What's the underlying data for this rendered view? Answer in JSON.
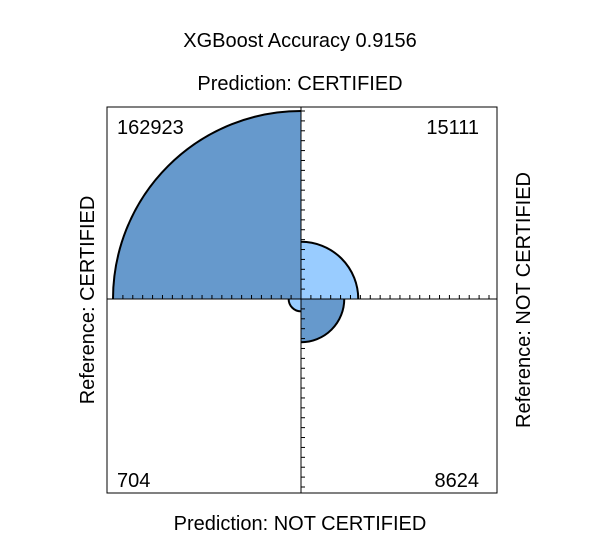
{
  "chart_data": {
    "type": "fourfold",
    "title": "XGBoost Accuracy 0.9156",
    "top_label": "Prediction: CERTIFIED",
    "bottom_label": "Prediction: NOT CERTIFIED",
    "left_label": "Reference: CERTIFIED",
    "right_label": "Reference: NOT CERTIFIED",
    "cells": [
      {
        "name": "certified-certified",
        "quadrant": "top-left",
        "value": 162923,
        "fill": "#6699CC"
      },
      {
        "name": "certified-not-certified",
        "quadrant": "top-right",
        "value": 15111,
        "fill": "#99CCFF"
      },
      {
        "name": "not-certified-certified",
        "quadrant": "bottom-left",
        "value": 704,
        "fill": "#99CCFF"
      },
      {
        "name": "not-certified-not-certified",
        "quadrant": "bottom-right",
        "value": 8624,
        "fill": "#6699CC"
      }
    ],
    "border_color": "#000000"
  }
}
